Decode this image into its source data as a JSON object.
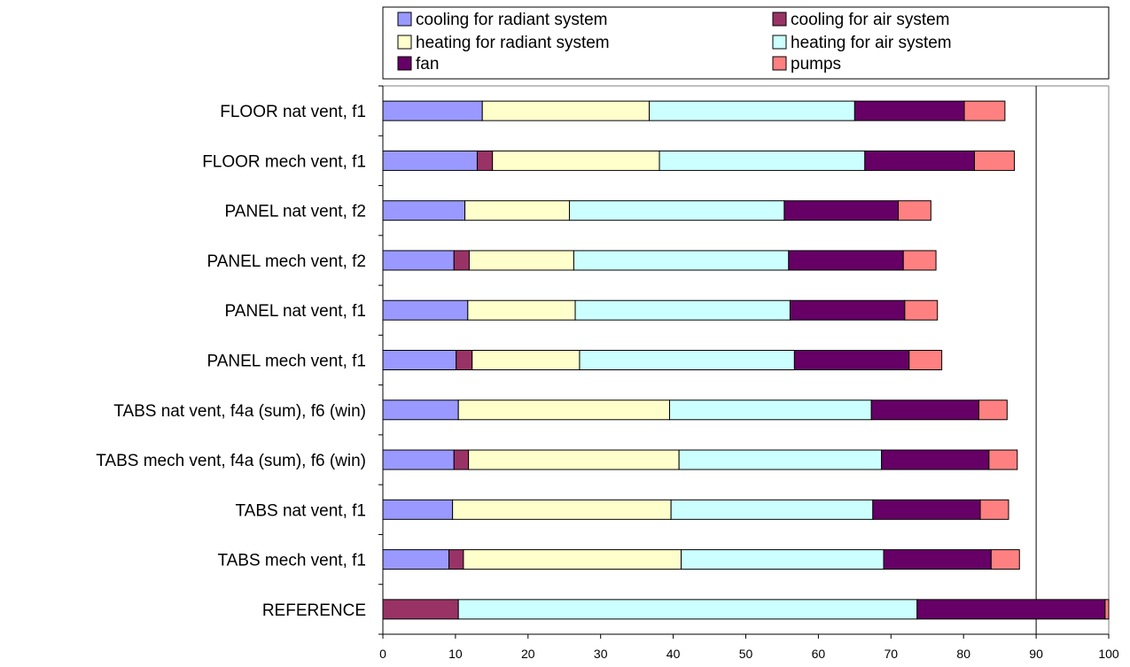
{
  "chart_data": {
    "type": "bar",
    "orientation": "horizontal",
    "stacked": true,
    "title": "",
    "xlabel": "",
    "ylabel": "",
    "xlim": [
      0,
      100
    ],
    "x_ticks": [
      0,
      10,
      20,
      30,
      40,
      50,
      60,
      70,
      80,
      90,
      100
    ],
    "grid": "vertical gridline at 90",
    "legend_position": "top",
    "categories": [
      "FLOOR nat vent, f1",
      "FLOOR mech vent, f1",
      "PANEL nat vent, f2",
      "PANEL mech vent, f2",
      "PANEL nat vent, f1",
      "PANEL mech vent, f1",
      "TABS nat vent, f4a (sum), f6 (win)",
      "TABS mech vent, f4a (sum), f6 (win)",
      "TABS nat vent, f1",
      "TABS mech vent, f1",
      "REFERENCE"
    ],
    "series": [
      {
        "name": "cooling for radiant system",
        "color": "#9999ff",
        "values": [
          13.7,
          13.0,
          11.3,
          9.8,
          11.7,
          10.1,
          10.4,
          9.8,
          9.6,
          9.1,
          0
        ]
      },
      {
        "name": "cooling for air system",
        "color": "#993366",
        "values": [
          0,
          2.1,
          0,
          2.1,
          0,
          2.2,
          0,
          2.0,
          0,
          2.0,
          10.4
        ]
      },
      {
        "name": "heating for radiant system",
        "color": "#ffffcc",
        "values": [
          23.0,
          23.0,
          14.4,
          14.4,
          14.8,
          14.8,
          29.1,
          29.0,
          30.1,
          30.0,
          0
        ]
      },
      {
        "name": "heating for air system",
        "color": "#ccffff",
        "values": [
          28.3,
          28.3,
          29.6,
          29.6,
          29.6,
          29.6,
          27.8,
          27.9,
          27.8,
          27.9,
          63.2
        ]
      },
      {
        "name": "fan",
        "color": "#660066",
        "values": [
          15.1,
          15.1,
          15.7,
          15.8,
          15.8,
          15.8,
          14.8,
          14.8,
          14.8,
          14.8,
          25.9
        ]
      },
      {
        "name": "pumps",
        "color": "#ff8080",
        "values": [
          5.6,
          5.5,
          4.5,
          4.5,
          4.5,
          4.5,
          3.9,
          3.9,
          3.9,
          3.9,
          0.5
        ]
      }
    ]
  }
}
